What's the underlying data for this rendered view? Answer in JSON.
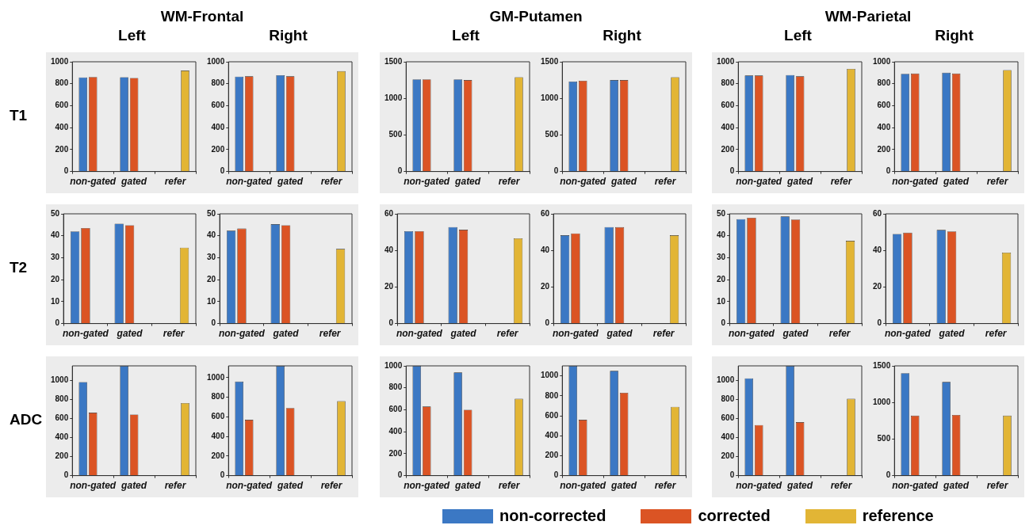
{
  "chart_data": [
    {
      "type": "bar",
      "title": "WM-Frontal",
      "subtitle": "Left",
      "ylabel": "T1",
      "categories": [
        "non-gated",
        "gated",
        "refer"
      ],
      "ylim": [
        0,
        1000
      ],
      "yticks": [
        0,
        200,
        400,
        600,
        800,
        1000
      ],
      "series": [
        {
          "color": "#3b78c4",
          "values": [
            858,
            860,
            null
          ]
        },
        {
          "color": "#db5424",
          "values": [
            862,
            852,
            null
          ]
        },
        {
          "color": "#e2b535",
          "values": [
            null,
            null,
            920
          ]
        }
      ]
    },
    {
      "type": "bar",
      "subtitle": "Right",
      "categories": [
        "non-gated",
        "gated",
        "refer"
      ],
      "ylim": [
        0,
        1000
      ],
      "yticks": [
        0,
        200,
        400,
        600,
        800,
        1000
      ],
      "series": [
        {
          "color": "#3b78c4",
          "values": [
            865,
            878,
            null
          ]
        },
        {
          "color": "#db5424",
          "values": [
            868,
            868,
            null
          ]
        },
        {
          "color": "#e2b535",
          "values": [
            null,
            null,
            915
          ]
        }
      ]
    },
    {
      "type": "bar",
      "title": "GM-Putamen",
      "subtitle": "Left",
      "categories": [
        "non-gated",
        "gated",
        "refer"
      ],
      "ylim": [
        0,
        1500
      ],
      "yticks": [
        0,
        500,
        1000,
        1500
      ],
      "series": [
        {
          "color": "#3b78c4",
          "values": [
            1260,
            1260,
            null
          ]
        },
        {
          "color": "#db5424",
          "values": [
            1260,
            1250,
            null
          ]
        },
        {
          "color": "#e2b535",
          "values": [
            null,
            null,
            1290
          ]
        }
      ]
    },
    {
      "type": "bar",
      "subtitle": "Right",
      "categories": [
        "non-gated",
        "gated",
        "refer"
      ],
      "ylim": [
        0,
        1500
      ],
      "yticks": [
        0,
        500,
        1000,
        1500
      ],
      "series": [
        {
          "color": "#3b78c4",
          "values": [
            1230,
            1250,
            null
          ]
        },
        {
          "color": "#db5424",
          "values": [
            1240,
            1250,
            null
          ]
        },
        {
          "color": "#e2b535",
          "values": [
            null,
            null,
            1290
          ]
        }
      ]
    },
    {
      "type": "bar",
      "title": "WM-Parietal",
      "subtitle": "Left",
      "categories": [
        "non-gated",
        "gated",
        "refer"
      ],
      "ylim": [
        0,
        1000
      ],
      "yticks": [
        0,
        200,
        400,
        600,
        800,
        1000
      ],
      "series": [
        {
          "color": "#3b78c4",
          "values": [
            875,
            880,
            null
          ]
        },
        {
          "color": "#db5424",
          "values": [
            875,
            868,
            null
          ]
        },
        {
          "color": "#e2b535",
          "values": [
            null,
            null,
            935
          ]
        }
      ]
    },
    {
      "type": "bar",
      "subtitle": "Right",
      "categories": [
        "non-gated",
        "gated",
        "refer"
      ],
      "ylim": [
        0,
        1000
      ],
      "yticks": [
        0,
        200,
        400,
        600,
        800,
        1000
      ],
      "series": [
        {
          "color": "#3b78c4",
          "values": [
            890,
            900,
            null
          ]
        },
        {
          "color": "#db5424",
          "values": [
            893,
            893,
            null
          ]
        },
        {
          "color": "#e2b535",
          "values": [
            null,
            null,
            925
          ]
        }
      ]
    },
    {
      "type": "bar",
      "ylabel": "T2",
      "categories": [
        "non-gated",
        "gated",
        "refer"
      ],
      "ylim": [
        0,
        50
      ],
      "yticks": [
        0,
        10,
        20,
        30,
        40,
        50
      ],
      "series": [
        {
          "color": "#3b78c4",
          "values": [
            42,
            45.5,
            null
          ]
        },
        {
          "color": "#db5424",
          "values": [
            43.5,
            44.8,
            null
          ]
        },
        {
          "color": "#e2b535",
          "values": [
            null,
            null,
            34.6
          ]
        }
      ]
    },
    {
      "type": "bar",
      "categories": [
        "non-gated",
        "gated",
        "refer"
      ],
      "ylim": [
        0,
        50
      ],
      "yticks": [
        0,
        10,
        20,
        30,
        40,
        50
      ],
      "series": [
        {
          "color": "#3b78c4",
          "values": [
            42.3,
            45.3,
            null
          ]
        },
        {
          "color": "#db5424",
          "values": [
            43.3,
            44.8,
            null
          ]
        },
        {
          "color": "#e2b535",
          "values": [
            null,
            null,
            34
          ]
        }
      ]
    },
    {
      "type": "bar",
      "categories": [
        "non-gated",
        "gated",
        "refer"
      ],
      "ylim": [
        0,
        60
      ],
      "yticks": [
        0,
        20,
        40,
        60
      ],
      "series": [
        {
          "color": "#3b78c4",
          "values": [
            50.5,
            52.8,
            null
          ]
        },
        {
          "color": "#db5424",
          "values": [
            50.5,
            51.3,
            null
          ]
        },
        {
          "color": "#e2b535",
          "values": [
            null,
            null,
            46.6
          ]
        }
      ]
    },
    {
      "type": "bar",
      "categories": [
        "non-gated",
        "gated",
        "refer"
      ],
      "ylim": [
        0,
        60
      ],
      "yticks": [
        0,
        20,
        40,
        60
      ],
      "series": [
        {
          "color": "#3b78c4",
          "values": [
            48.3,
            52.8,
            null
          ]
        },
        {
          "color": "#db5424",
          "values": [
            49.3,
            52.7,
            null
          ]
        },
        {
          "color": "#e2b535",
          "values": [
            null,
            null,
            48.3
          ]
        }
      ]
    },
    {
      "type": "bar",
      "categories": [
        "non-gated",
        "gated",
        "refer"
      ],
      "ylim": [
        0,
        50
      ],
      "yticks": [
        0,
        10,
        20,
        30,
        40,
        50
      ],
      "series": [
        {
          "color": "#3b78c4",
          "values": [
            47.6,
            48.8,
            null
          ]
        },
        {
          "color": "#db5424",
          "values": [
            48.2,
            47.4,
            null
          ]
        },
        {
          "color": "#e2b535",
          "values": [
            null,
            null,
            37.7
          ]
        }
      ]
    },
    {
      "type": "bar",
      "categories": [
        "non-gated",
        "gated",
        "refer"
      ],
      "ylim": [
        0,
        60
      ],
      "yticks": [
        0,
        20,
        40,
        60
      ],
      "series": [
        {
          "color": "#3b78c4",
          "values": [
            49,
            51.2,
            null
          ]
        },
        {
          "color": "#db5424",
          "values": [
            49.7,
            50.4,
            null
          ]
        },
        {
          "color": "#e2b535",
          "values": [
            null,
            null,
            38.8
          ]
        }
      ]
    },
    {
      "type": "bar",
      "ylabel": "ADC",
      "categories": [
        "non-gated",
        "gated",
        "refer"
      ],
      "ylim": [
        0,
        1150
      ],
      "yticks": [
        0,
        200,
        400,
        600,
        800,
        1000
      ],
      "series": [
        {
          "color": "#3b78c4",
          "values": [
            980,
            1150,
            null
          ]
        },
        {
          "color": "#db5424",
          "values": [
            660,
            640,
            null
          ]
        },
        {
          "color": "#e2b535",
          "values": [
            null,
            null,
            760
          ]
        }
      ]
    },
    {
      "type": "bar",
      "categories": [
        "non-gated",
        "gated",
        "refer"
      ],
      "ylim": [
        0,
        1120
      ],
      "yticks": [
        0,
        200,
        400,
        600,
        800,
        1000
      ],
      "series": [
        {
          "color": "#3b78c4",
          "values": [
            960,
            1120,
            null
          ]
        },
        {
          "color": "#db5424",
          "values": [
            570,
            690,
            null
          ]
        },
        {
          "color": "#e2b535",
          "values": [
            null,
            null,
            760
          ]
        }
      ]
    },
    {
      "type": "bar",
      "categories": [
        "non-gated",
        "gated",
        "refer"
      ],
      "ylim": [
        0,
        1000
      ],
      "yticks": [
        0,
        200,
        400,
        600,
        800,
        1000
      ],
      "series": [
        {
          "color": "#3b78c4",
          "values": [
            1000,
            940,
            null
          ]
        },
        {
          "color": "#db5424",
          "values": [
            630,
            600,
            null
          ]
        },
        {
          "color": "#e2b535",
          "values": [
            null,
            null,
            700
          ]
        }
      ]
    },
    {
      "type": "bar",
      "categories": [
        "non-gated",
        "gated",
        "refer"
      ],
      "ylim": [
        0,
        1100
      ],
      "yticks": [
        0,
        200,
        400,
        600,
        800,
        1000
      ],
      "series": [
        {
          "color": "#3b78c4",
          "values": [
            1100,
            1050,
            null
          ]
        },
        {
          "color": "#db5424",
          "values": [
            560,
            830,
            null
          ]
        },
        {
          "color": "#e2b535",
          "values": [
            null,
            null,
            690
          ]
        }
      ]
    },
    {
      "type": "bar",
      "categories": [
        "non-gated",
        "gated",
        "refer"
      ],
      "ylim": [
        0,
        1150
      ],
      "yticks": [
        0,
        200,
        400,
        600,
        800,
        1000
      ],
      "series": [
        {
          "color": "#3b78c4",
          "values": [
            1020,
            1150,
            null
          ]
        },
        {
          "color": "#db5424",
          "values": [
            530,
            560,
            null
          ]
        },
        {
          "color": "#e2b535",
          "values": [
            null,
            null,
            805
          ]
        }
      ]
    },
    {
      "type": "bar",
      "legend": "bottom",
      "categories": [
        "non-gated",
        "gated",
        "refer"
      ],
      "ylim": [
        0,
        1500
      ],
      "yticks": [
        0,
        500,
        1000,
        1500
      ],
      "series": [
        {
          "name": "non-corrected",
          "color": "#3b78c4",
          "values": [
            1400,
            1280,
            null
          ]
        },
        {
          "name": "corrected",
          "color": "#db5424",
          "values": [
            820,
            830,
            null
          ]
        },
        {
          "name": "reference",
          "color": "#e2b535",
          "values": [
            null,
            null,
            820
          ]
        }
      ]
    }
  ]
}
